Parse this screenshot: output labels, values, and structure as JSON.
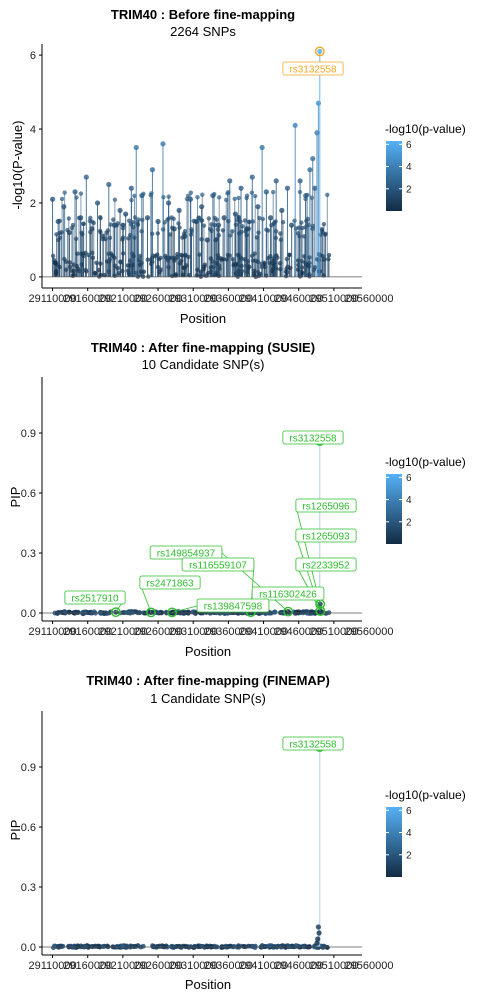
{
  "colors": {
    "low": "#132B43",
    "high": "#56B1F7",
    "lead": "#F5A623",
    "candidate": "#2DBE2D",
    "axis": "#000000"
  },
  "chart_data": [
    {
      "type": "scatter",
      "title": "TRIM40 : Before fine-mapping",
      "subtitle": "2264 SNPs",
      "xlabel": "Position",
      "ylabel": "-log10(P-value)",
      "ylim": [
        -0.3,
        6.3
      ],
      "yticks": [
        0,
        2,
        4,
        6
      ],
      "ytick_labels": [
        "0",
        "2",
        "4",
        "6"
      ],
      "xticks": [
        29110000,
        29160000,
        29210000,
        29260000,
        29310000,
        29360000,
        29410000,
        29460000,
        29510000,
        29560000
      ],
      "xtick_labels": [
        "29110000",
        "29160000",
        "29210000",
        "29260000",
        "29310000",
        "29360000",
        "29410000",
        "29460000",
        "29510000",
        "29560000"
      ],
      "xlim": [
        29095000,
        29550000
      ],
      "legend_title": "-log10(p-value)",
      "legend_ticks": [
        2,
        4,
        6
      ],
      "legend_range": [
        0,
        6.3
      ],
      "legend_position": "right",
      "stems": true,
      "points": [
        [
          29110000,
          2.1
        ],
        [
          29118000,
          1.5
        ],
        [
          29126000,
          1.9
        ],
        [
          29134000,
          1.2
        ],
        [
          29142000,
          2.3
        ],
        [
          29150000,
          1.6
        ],
        [
          29158000,
          2.7
        ],
        [
          29166000,
          1.3
        ],
        [
          29174000,
          2.0
        ],
        [
          29182000,
          1.1
        ],
        [
          29190000,
          2.5
        ],
        [
          29198000,
          1.4
        ],
        [
          29206000,
          1.8
        ],
        [
          29214000,
          1.7
        ],
        [
          29222000,
          2.4
        ],
        [
          29229000,
          3.5
        ],
        [
          29237000,
          2.2
        ],
        [
          29245000,
          1.6
        ],
        [
          29252000,
          2.9
        ],
        [
          29260000,
          1.5
        ],
        [
          29267000,
          3.6
        ],
        [
          29275000,
          2.0
        ],
        [
          29283000,
          1.3
        ],
        [
          29290000,
          1.8
        ],
        [
          29298000,
          1.1
        ],
        [
          29306000,
          2.1
        ],
        [
          29314000,
          1.5
        ],
        [
          29322000,
          1.9
        ],
        [
          29330000,
          1.0
        ],
        [
          29338000,
          2.2
        ],
        [
          29346000,
          1.4
        ],
        [
          29354000,
          1.6
        ],
        [
          29362000,
          2.6
        ],
        [
          29370000,
          1.7
        ],
        [
          29378000,
          2.4
        ],
        [
          29386000,
          1.3
        ],
        [
          29394000,
          2.7
        ],
        [
          29402000,
          1.9
        ],
        [
          29408000,
          3.5
        ],
        [
          29414000,
          2.3
        ],
        [
          29420000,
          1.6
        ],
        [
          29428000,
          2.6
        ],
        [
          29436000,
          1.8
        ],
        [
          29444000,
          2.4
        ],
        [
          29450000,
          1.4
        ],
        [
          29455000,
          4.1
        ],
        [
          29462000,
          2.6
        ],
        [
          29470000,
          2.2
        ],
        [
          29476000,
          2.9
        ],
        [
          29480000,
          3.2
        ],
        [
          29483000,
          2.4
        ],
        [
          29486000,
          3.9
        ],
        [
          29488000,
          4.7
        ],
        [
          29490000,
          6.1
        ]
      ],
      "labels": [
        {
          "text": "rs3132558",
          "x": 29490000,
          "y": 6.1,
          "kind": "lead"
        }
      ]
    },
    {
      "type": "scatter",
      "title": "TRIM40 : After fine-mapping (SUSIE)",
      "subtitle": "10 Candidate SNP(s)",
      "xlabel": "Position",
      "ylabel": "PIP",
      "ylim": [
        -0.04,
        1.18
      ],
      "yticks": [
        0,
        0.3,
        0.6,
        0.9
      ],
      "ytick_labels": [
        "0.0",
        "0.3",
        "0.6",
        "0.9"
      ],
      "xticks": [
        29110000,
        29160000,
        29210000,
        29260000,
        29310000,
        29360000,
        29410000,
        29460000,
        29510000,
        29560000
      ],
      "xtick_labels": [
        "29110000",
        "29160000",
        "29210000",
        "29260000",
        "29310000",
        "29360000",
        "29410000",
        "29460000",
        "29510000",
        "29560000"
      ],
      "xlim": [
        29095000,
        29550000
      ],
      "legend_title": "-log10(p-value)",
      "legend_ticks": [
        2,
        4,
        6
      ],
      "legend_range": [
        0,
        6.3
      ],
      "legend_position": "right",
      "stems": true,
      "points": [
        [
          29490000,
          0.86
        ],
        [
          29490500,
          0.045
        ],
        [
          29490800,
          0.01
        ],
        [
          29445000,
          0.007
        ],
        [
          29392000,
          0.004
        ],
        [
          29280000,
          0.003
        ],
        [
          29250000,
          0.003
        ],
        [
          29200000,
          0.004
        ],
        [
          29460000,
          0.006
        ],
        [
          29320000,
          0.004
        ]
      ],
      "labels": [
        {
          "text": "rs3132558",
          "x": 29490000,
          "y": 0.86,
          "kind": "candidate"
        },
        {
          "text": "rs1265096",
          "x": 29490500,
          "y": 0.045,
          "kind": "candidate"
        },
        {
          "text": "rs1265093",
          "x": 29490800,
          "y": 0.01,
          "kind": "candidate"
        },
        {
          "text": "rs2233952",
          "x": 29490800,
          "y": 0.01,
          "kind": "candidate"
        },
        {
          "text": "rs149854937",
          "x": 29445000,
          "y": 0.007,
          "kind": "candidate"
        },
        {
          "text": "rs116559107",
          "x": 29392000,
          "y": 0.004,
          "kind": "candidate"
        },
        {
          "text": "rs116302426",
          "x": 29392000,
          "y": 0.004,
          "kind": "candidate"
        },
        {
          "text": "rs139847598",
          "x": 29280000,
          "y": 0.003,
          "kind": "candidate"
        },
        {
          "text": "rs2471863",
          "x": 29250000,
          "y": 0.003,
          "kind": "candidate"
        },
        {
          "text": "rs2517910",
          "x": 29200000,
          "y": 0.004,
          "kind": "candidate"
        }
      ]
    },
    {
      "type": "scatter",
      "title": "TRIM40 : After fine-mapping (FINEMAP)",
      "subtitle": "1 Candidate SNP(s)",
      "xlabel": "Position",
      "ylabel": "PIP",
      "ylim": [
        -0.04,
        1.18
      ],
      "yticks": [
        0,
        0.3,
        0.6,
        0.9
      ],
      "ytick_labels": [
        "0.0",
        "0.3",
        "0.6",
        "0.9"
      ],
      "xticks": [
        29110000,
        29160000,
        29210000,
        29260000,
        29310000,
        29360000,
        29410000,
        29460000,
        29510000,
        29560000
      ],
      "xtick_labels": [
        "29110000",
        "29160000",
        "29210000",
        "29260000",
        "29310000",
        "29360000",
        "29410000",
        "29460000",
        "29510000",
        "29560000"
      ],
      "xlim": [
        29095000,
        29550000
      ],
      "legend_title": "-log10(p-value)",
      "legend_ticks": [
        2,
        4,
        6
      ],
      "legend_range": [
        0,
        6.3
      ],
      "legend_position": "right",
      "stems": true,
      "points": [
        [
          29490000,
          1.0
        ],
        [
          29488000,
          0.1
        ],
        [
          29489000,
          0.07
        ],
        [
          29487000,
          0.04
        ],
        [
          29486000,
          0.02
        ]
      ],
      "labels": [
        {
          "text": "rs3132558",
          "x": 29490000,
          "y": 1.0,
          "kind": "candidate"
        }
      ]
    }
  ]
}
